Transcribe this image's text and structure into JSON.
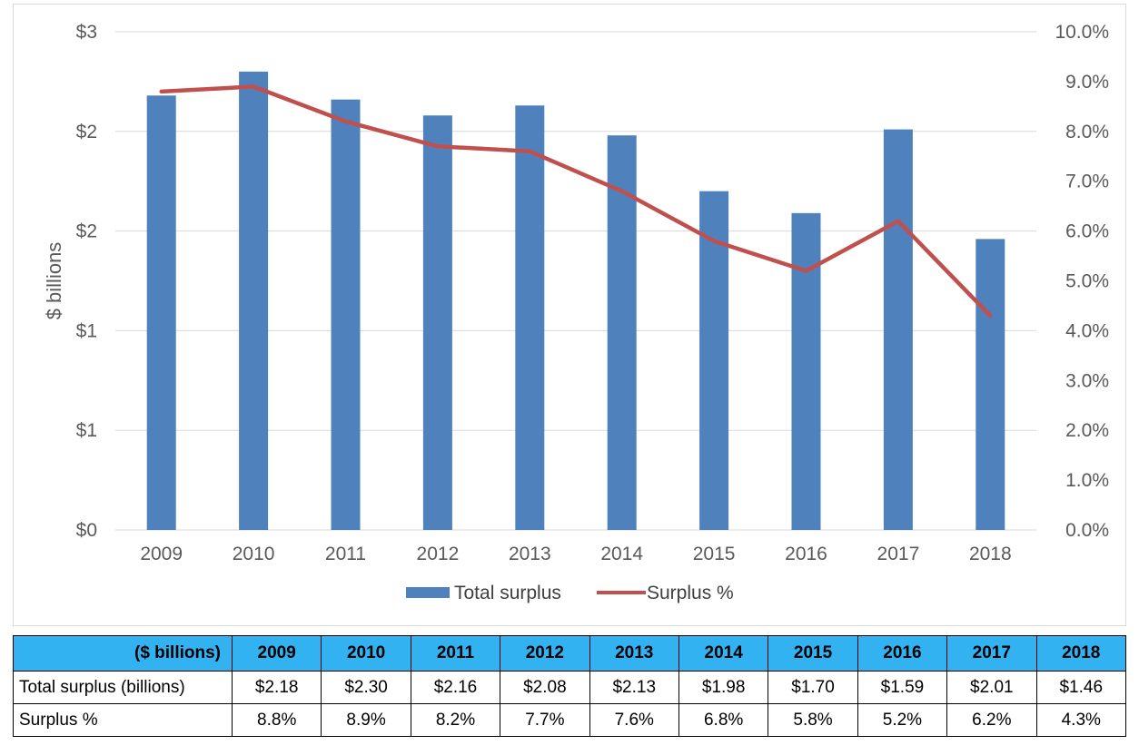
{
  "chart_data": {
    "type": "bar",
    "categories": [
      "2009",
      "2010",
      "2011",
      "2012",
      "2013",
      "2014",
      "2015",
      "2016",
      "2017",
      "2018"
    ],
    "series": [
      {
        "name": "Total surplus",
        "type": "bar",
        "axis": "left",
        "values": [
          2.18,
          2.3,
          2.16,
          2.08,
          2.13,
          1.98,
          1.7,
          1.59,
          2.01,
          1.46
        ],
        "color": "#4f81bd"
      },
      {
        "name": "Surplus %",
        "type": "line",
        "axis": "right",
        "values": [
          8.8,
          8.9,
          8.2,
          7.7,
          7.6,
          6.8,
          5.8,
          5.2,
          6.2,
          4.3
        ],
        "color": "#c0504d"
      }
    ],
    "ylabel": "$ billions",
    "ylim_left": [
      0,
      2.5
    ],
    "ylim_right": [
      0,
      10
    ],
    "left_tick_labels": [
      "$0",
      "$1",
      "$1",
      "$2",
      "$2",
      "$3"
    ],
    "right_tick_labels": [
      "0.0%",
      "1.0%",
      "2.0%",
      "3.0%",
      "4.0%",
      "5.0%",
      "6.0%",
      "7.0%",
      "8.0%",
      "9.0%",
      "10.0%"
    ],
    "grid": true,
    "legend": "bottom"
  },
  "table": {
    "header_label": "($ billions)",
    "years": [
      "2009",
      "2010",
      "2011",
      "2012",
      "2013",
      "2014",
      "2015",
      "2016",
      "2017",
      "2018"
    ],
    "rows": [
      {
        "label": "Total surplus (billions)",
        "values": [
          "$2.18",
          "$2.30",
          "$2.16",
          "$2.08",
          "$2.13",
          "$1.98",
          "$1.70",
          "$1.59",
          "$2.01",
          "$1.46"
        ]
      },
      {
        "label": "Surplus %",
        "values": [
          "8.8%",
          "8.9%",
          "8.2%",
          "7.7%",
          "7.6%",
          "6.8%",
          "5.8%",
          "5.2%",
          "6.2%",
          "4.3%"
        ]
      }
    ]
  }
}
